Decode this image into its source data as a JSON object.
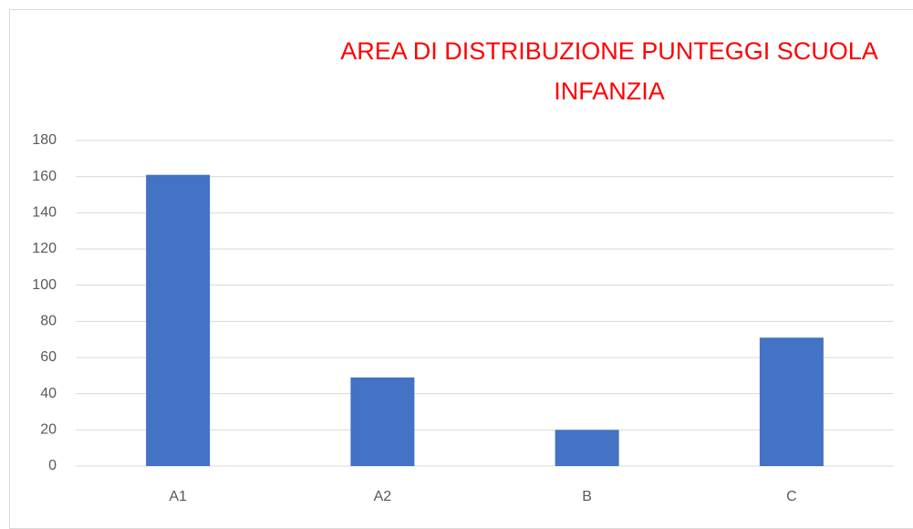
{
  "chart_data": {
    "type": "bar",
    "title": "AREA DI DISTRIBUZIONE PUNTEGGI SCUOLA INFANZIA",
    "categories": [
      "A1",
      "A2",
      "B",
      "C"
    ],
    "values": [
      161,
      49,
      20,
      71
    ],
    "color": "#4472c4",
    "ylim": [
      0,
      180
    ],
    "yticks": [
      0,
      20,
      40,
      60,
      80,
      100,
      120,
      140,
      160,
      180
    ],
    "grid": true
  }
}
